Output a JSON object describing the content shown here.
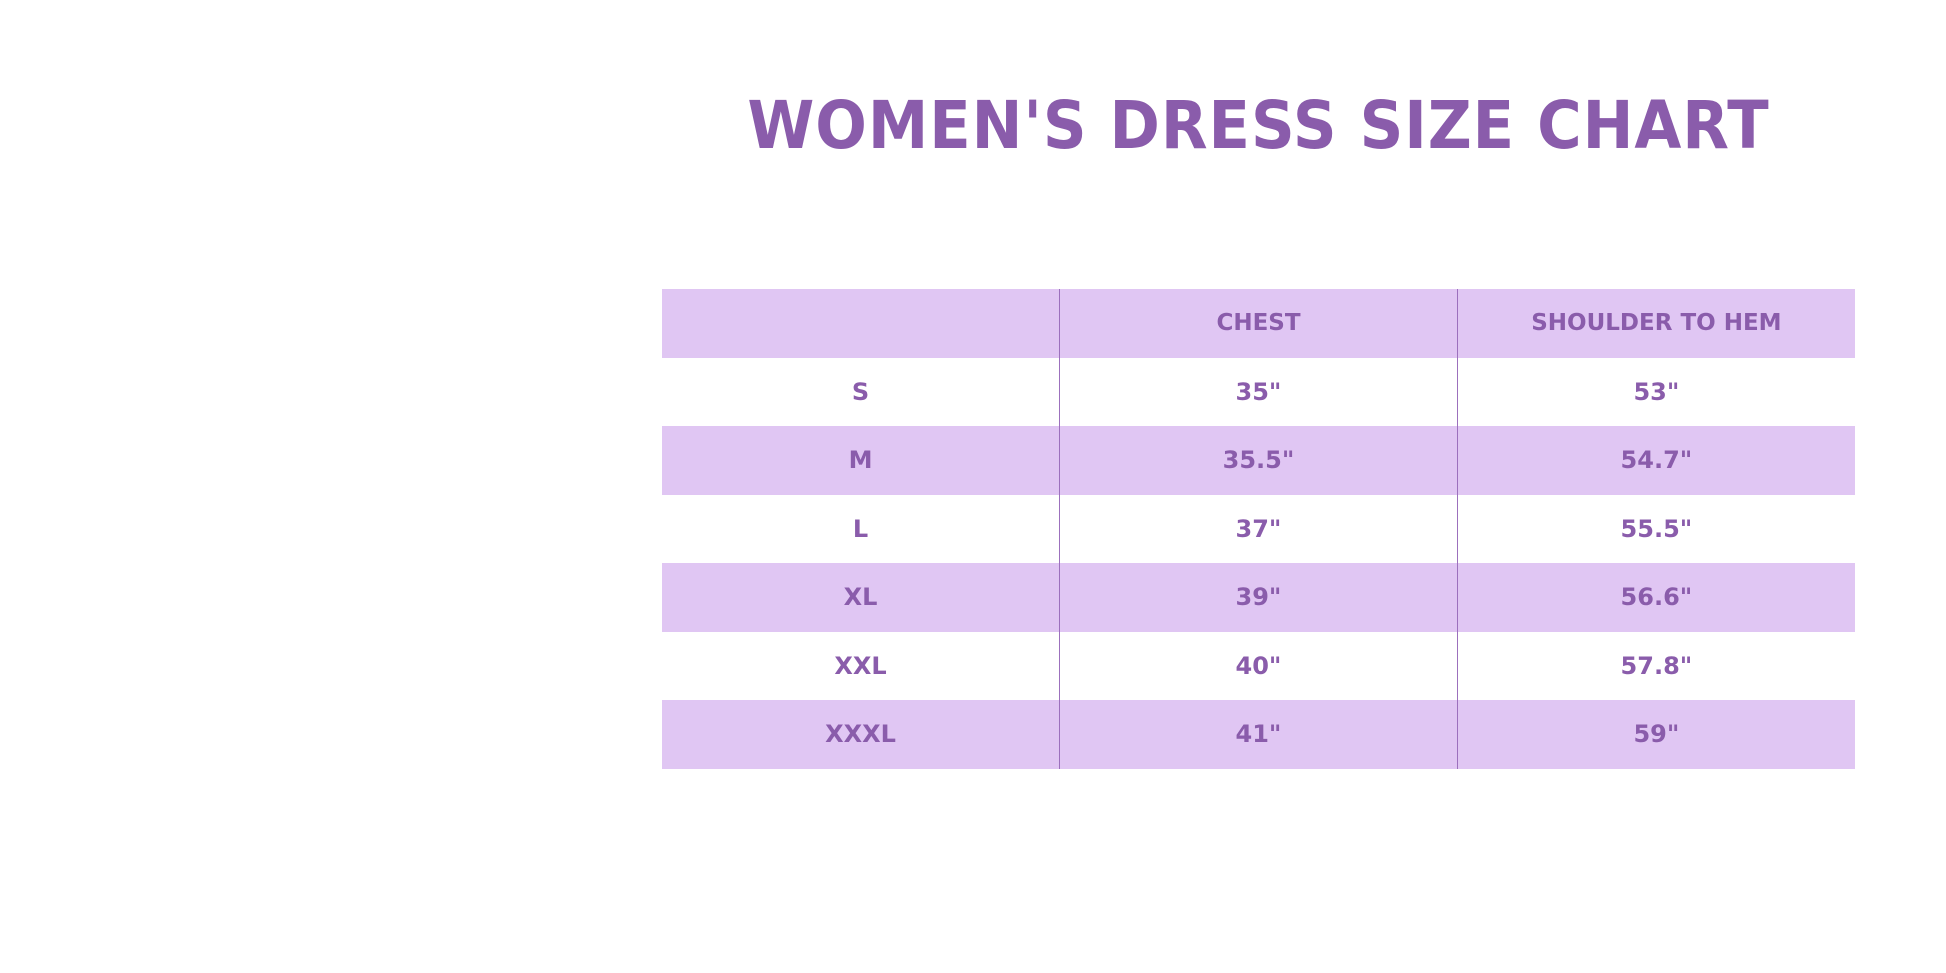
{
  "title": "WOMEN'S DRESS SIZE CHART",
  "colors": {
    "text": "#8a5cab",
    "row_shade": "#e0c6f3",
    "background": "#ffffff"
  },
  "table": {
    "headers": [
      "",
      "CHEST",
      "SHOULDER TO HEM"
    ],
    "rows": [
      [
        "S",
        "35\"",
        "53\""
      ],
      [
        "M",
        "35.5\"",
        "54.7\""
      ],
      [
        "L",
        "37\"",
        "55.5\""
      ],
      [
        "XL",
        "39\"",
        "56.6\""
      ],
      [
        "XXL",
        "40\"",
        "57.8\""
      ],
      [
        "XXXL",
        "41\"",
        "59\""
      ]
    ]
  }
}
